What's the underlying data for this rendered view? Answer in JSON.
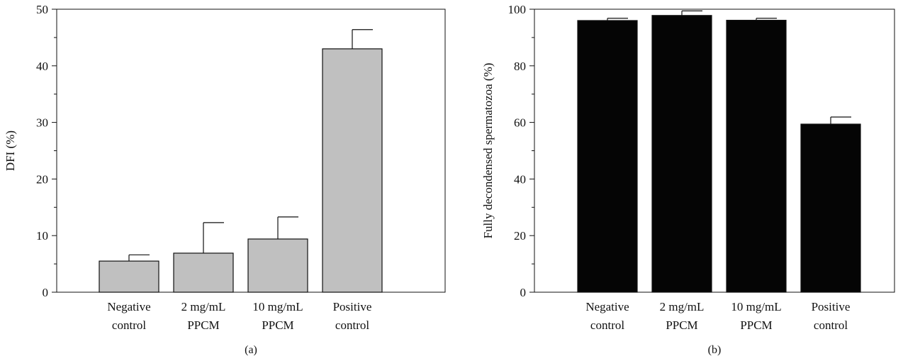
{
  "chart_data": [
    {
      "type": "bar",
      "panel_label": "(a)",
      "ylabel": "DFI (%)",
      "xlabel": "",
      "categories": [
        [
          "Negative",
          "control"
        ],
        [
          "2 mg/mL",
          "PPCM"
        ],
        [
          "10 mg/mL",
          "PPCM"
        ],
        [
          "Positive",
          "control"
        ]
      ],
      "values": [
        5.5,
        6.9,
        9.4,
        43.0
      ],
      "error_upper": [
        6.6,
        12.3,
        13.3,
        46.4
      ],
      "ylim": [
        0,
        50
      ],
      "yticks": [
        0,
        10,
        20,
        30,
        40,
        50
      ],
      "bar_color": "#c0c0c0",
      "grid": false
    },
    {
      "type": "bar",
      "panel_label": "(b)",
      "ylabel": "Fully decondensed spermatozoa (%)",
      "xlabel": "",
      "categories": [
        [
          "Negative",
          "control"
        ],
        [
          "2 mg/mL",
          "PPCM"
        ],
        [
          "10 mg/mL",
          "PPCM"
        ],
        [
          "Positive",
          "control"
        ]
      ],
      "values": [
        96.0,
        97.8,
        96.1,
        59.4
      ],
      "error_upper": [
        96.8,
        99.4,
        96.8,
        61.9
      ],
      "ylim": [
        0,
        100
      ],
      "yticks": [
        0,
        20,
        40,
        60,
        80,
        100
      ],
      "bar_color": "#050505",
      "grid": false
    }
  ]
}
